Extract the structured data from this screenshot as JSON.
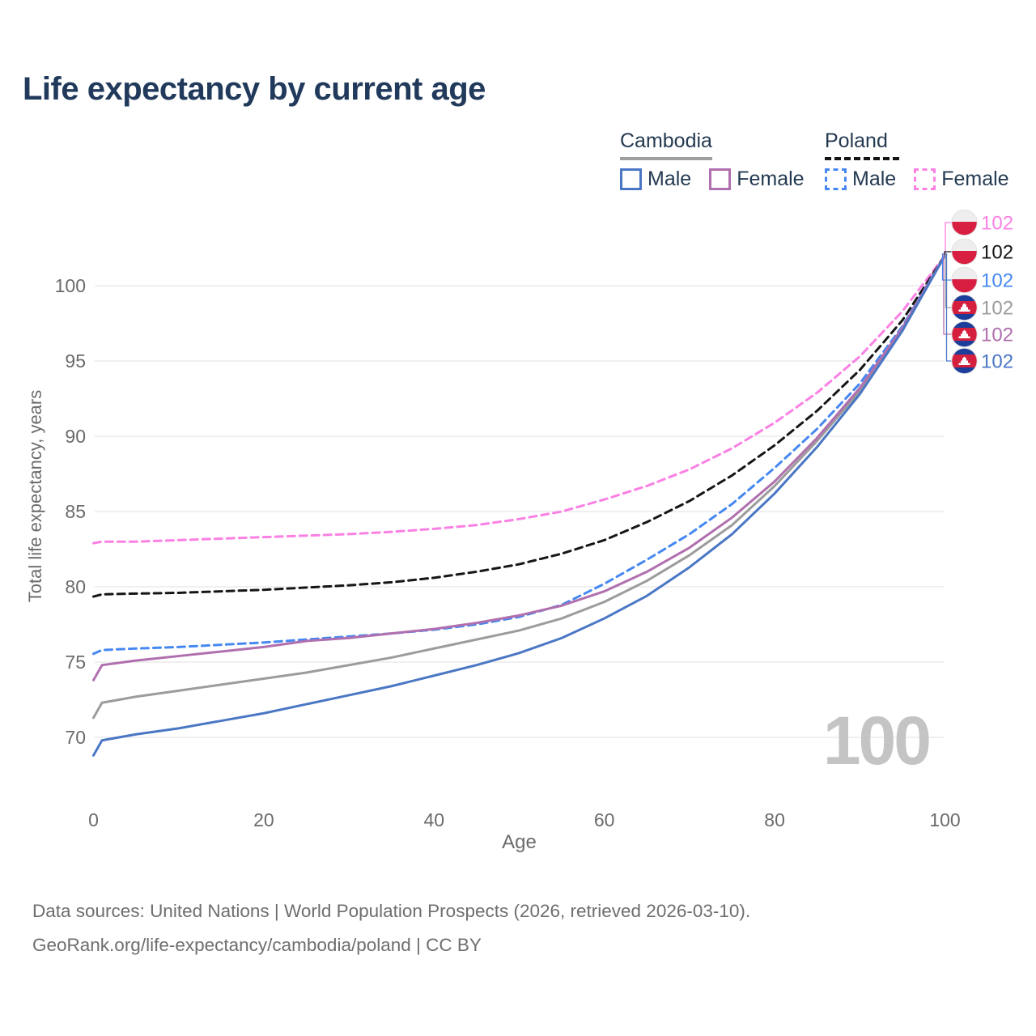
{
  "title": "Life expectancy by current age",
  "legend": {
    "cambodia": {
      "label": "Cambodia",
      "male_label": "Male",
      "female_label": "Female",
      "underline_color": "#9e9e9e",
      "underline_style": "solid"
    },
    "poland": {
      "label": "Poland",
      "male_label": "Male",
      "female_label": "Female",
      "underline_color": "#141414",
      "underline_style": "dashed"
    }
  },
  "watermark": "100",
  "colors": {
    "title_text": "#213a5c",
    "legend_text": "#243a52",
    "axis_text": "#6b6b6b",
    "gridline": "#e8e8e8",
    "watermark_gray": "#c4c4c4",
    "poland_flag_white": "#eeeeee",
    "poland_flag_red": "#d81e41",
    "cambodia_flag_blue": "#1c3e9b",
    "cambodia_flag_red": "#d51f3f",
    "cambodia_temple_white": "#ffffff"
  },
  "chart_data": {
    "type": "line",
    "title": "Life expectancy by current age",
    "xlabel": "Age",
    "ylabel": "Total life expectancy, years",
    "x_ticks": [
      0,
      20,
      40,
      60,
      80,
      100
    ],
    "y_ticks": [
      70,
      75,
      80,
      85,
      90,
      95,
      100
    ],
    "xlim": [
      0,
      100
    ],
    "ylim": [
      68,
      102.5
    ],
    "grid": "horizontal-only",
    "legend_position": "top-right",
    "age_counter_watermark": "100",
    "ages": [
      0,
      1,
      5,
      10,
      15,
      20,
      25,
      30,
      35,
      40,
      45,
      50,
      55,
      60,
      65,
      70,
      75,
      80,
      85,
      90,
      95,
      100
    ],
    "series": [
      {
        "name": "Poland Female",
        "country": "Poland",
        "sex": "female",
        "color": "#fb80e4",
        "dashed": true,
        "end_label": "102",
        "values": [
          82.9,
          83.0,
          83.0,
          83.1,
          83.2,
          83.3,
          83.4,
          83.5,
          83.65,
          83.85,
          84.1,
          84.5,
          85.0,
          85.8,
          86.7,
          87.8,
          89.2,
          90.9,
          92.9,
          95.3,
          98.3,
          102
        ]
      },
      {
        "name": "Poland",
        "country": "Poland",
        "sex": "both",
        "color": "#161616",
        "dashed": true,
        "end_label": "102",
        "values": [
          79.35,
          79.5,
          79.55,
          79.6,
          79.7,
          79.8,
          79.95,
          80.1,
          80.3,
          80.6,
          81.0,
          81.5,
          82.2,
          83.1,
          84.3,
          85.7,
          87.4,
          89.4,
          91.7,
          94.4,
          97.7,
          102
        ]
      },
      {
        "name": "Poland Male",
        "country": "Poland",
        "sex": "male",
        "color": "#4688f1",
        "dashed": true,
        "end_label": "102",
        "values": [
          75.55,
          75.8,
          75.9,
          76.0,
          76.15,
          76.3,
          76.5,
          76.7,
          76.9,
          77.15,
          77.5,
          78.0,
          78.8,
          80.2,
          81.8,
          83.5,
          85.5,
          87.9,
          90.5,
          93.5,
          97.3,
          102
        ]
      },
      {
        "name": "Cambodia",
        "country": "Cambodia",
        "sex": "both",
        "color": "#9c9c9c",
        "dashed": false,
        "end_label": "102",
        "values": [
          71.3,
          72.3,
          72.7,
          73.1,
          73.5,
          73.9,
          74.3,
          74.8,
          75.3,
          75.9,
          76.5,
          77.1,
          77.9,
          79.0,
          80.4,
          82.1,
          84.1,
          86.7,
          89.7,
          93.0,
          97.1,
          102
        ]
      },
      {
        "name": "Cambodia Female",
        "country": "Cambodia",
        "sex": "female",
        "color": "#b06fae",
        "dashed": false,
        "end_label": "102",
        "values": [
          73.8,
          74.8,
          75.1,
          75.4,
          75.7,
          76.0,
          76.4,
          76.6,
          76.9,
          77.2,
          77.6,
          78.1,
          78.75,
          79.7,
          81.0,
          82.6,
          84.6,
          87.0,
          89.9,
          93.2,
          97.2,
          102
        ]
      },
      {
        "name": "Cambodia Male",
        "country": "Cambodia",
        "sex": "male",
        "color": "#4a77c4",
        "dashed": false,
        "end_label": "102",
        "values": [
          68.8,
          69.8,
          70.2,
          70.6,
          71.1,
          71.6,
          72.2,
          72.8,
          73.4,
          74.1,
          74.8,
          75.6,
          76.6,
          77.9,
          79.4,
          81.3,
          83.5,
          86.2,
          89.3,
          92.8,
          97.0,
          102
        ]
      }
    ]
  },
  "footer": {
    "line1": "Data sources: United Nations | World Population Prospects (2026, retrieved 2026-03-10).",
    "line2": "GeoRank.org/life-expectancy/cambodia/poland | CC BY"
  }
}
